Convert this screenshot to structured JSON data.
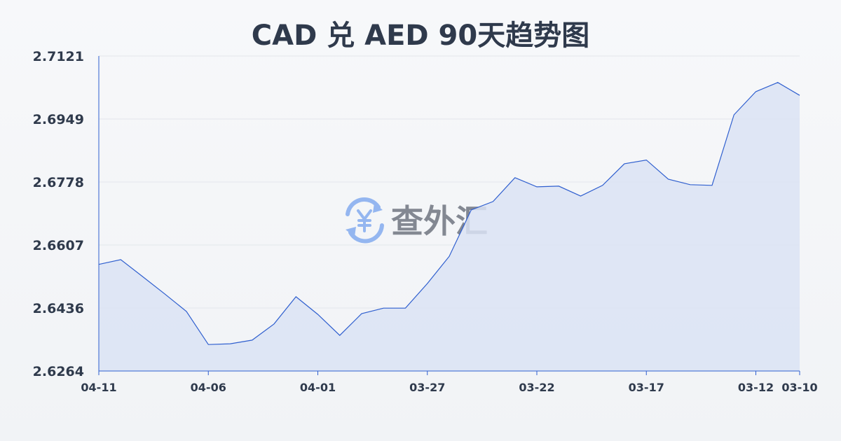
{
  "watermark": {
    "text": "查外汇",
    "icon": "yen-exchange-icon",
    "icon_color": "#8fb3f0"
  },
  "chart_data": {
    "type": "area",
    "title": "CAD 兑 AED 90天趋势图",
    "xlabel": "",
    "ylabel": "",
    "ylim": [
      2.6264,
      2.7121
    ],
    "yticks": [
      "2.7121",
      "2.6949",
      "2.6778",
      "2.6607",
      "2.6436",
      "2.6264"
    ],
    "xticks": [
      "04-11",
      "04-06",
      "04-01",
      "03-27",
      "03-22",
      "03-17",
      "03-12",
      "03-10"
    ],
    "grid": true,
    "line_color": "#2f5fcf",
    "fill_color": "#dbe3f5",
    "x": [
      "04-11",
      "04-10",
      "04-09",
      "04-08",
      "04-07",
      "04-06",
      "04-05",
      "04-04",
      "04-03",
      "04-02",
      "04-01",
      "03-31",
      "03-30",
      "03-29",
      "03-28",
      "03-27",
      "03-26",
      "03-25",
      "03-24",
      "03-23",
      "03-22",
      "03-21",
      "03-20",
      "03-19",
      "03-18",
      "03-17",
      "03-16",
      "03-15",
      "03-14",
      "03-13",
      "03-12",
      "03-11",
      "03-10"
    ],
    "values": [
      2.6554,
      2.6567,
      2.6521,
      2.6474,
      2.6426,
      2.6336,
      2.6338,
      2.6348,
      2.6392,
      2.6466,
      2.6418,
      2.6361,
      2.642,
      2.6435,
      2.6435,
      2.6502,
      2.6576,
      2.6702,
      2.6725,
      2.679,
      2.6765,
      2.6767,
      2.674,
      2.6769,
      2.6828,
      2.6838,
      2.6786,
      2.6771,
      2.6769,
      2.6961,
      2.7024,
      2.7049,
      2.7014
    ]
  }
}
